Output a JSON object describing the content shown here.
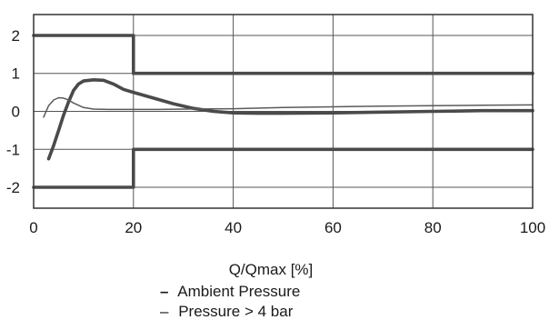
{
  "chart_data": {
    "type": "line",
    "xlabel": "Q/Qmax [%]",
    "ylabel": "",
    "xlim": [
      0,
      100
    ],
    "ylim": [
      -2.55,
      2.55
    ],
    "x_ticks": [
      "0",
      "20",
      "40",
      "60",
      "80",
      "100"
    ],
    "y_ticks": [
      "2",
      "1",
      "0",
      "-1",
      "-2"
    ],
    "grid": true,
    "legend": [
      {
        "marker": "–",
        "label": "Ambient Pressure"
      },
      {
        "marker": "–",
        "label": "Pressure > 4 bar"
      }
    ],
    "series": [
      {
        "role": "upper-tolerance-limit",
        "style": "thick",
        "x": [
          0,
          20,
          20,
          100
        ],
        "y": [
          2,
          2,
          1,
          1
        ]
      },
      {
        "role": "lower-tolerance-limit",
        "style": "thick",
        "x": [
          0,
          20,
          20,
          100
        ],
        "y": [
          -2,
          -2,
          -1,
          -1
        ]
      },
      {
        "role": "ambient-pressure-curve",
        "style": "thick",
        "x": [
          3,
          4,
          5,
          6,
          7,
          8,
          9,
          10,
          12,
          14,
          16,
          18,
          20,
          24,
          28,
          32,
          36,
          40,
          45,
          50,
          60,
          70,
          80,
          90,
          100
        ],
        "y": [
          -1.25,
          -0.9,
          -0.5,
          -0.1,
          0.25,
          0.55,
          0.72,
          0.8,
          0.83,
          0.82,
          0.72,
          0.58,
          0.5,
          0.35,
          0.2,
          0.08,
          0.0,
          -0.04,
          -0.05,
          -0.05,
          -0.04,
          -0.02,
          0.0,
          0.02,
          0.02
        ]
      },
      {
        "role": "pressure-4bar-curve",
        "style": "thin",
        "x": [
          2,
          3,
          4,
          5,
          6,
          7,
          8,
          10,
          12,
          15,
          20,
          25,
          30,
          40,
          50,
          60,
          70,
          80,
          90,
          100
        ],
        "y": [
          -0.15,
          0.15,
          0.3,
          0.36,
          0.35,
          0.3,
          0.22,
          0.1,
          0.06,
          0.05,
          0.05,
          0.05,
          0.06,
          0.07,
          0.1,
          0.12,
          0.14,
          0.15,
          0.16,
          0.17
        ]
      }
    ]
  }
}
